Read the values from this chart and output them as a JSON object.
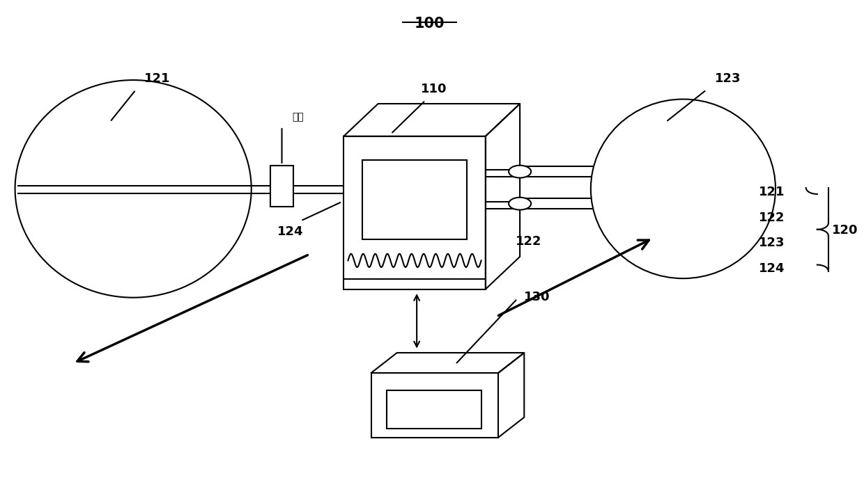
{
  "bg_color": "#ffffff",
  "lc": "#000000",
  "lw": 1.5,
  "figsize": [
    12.4,
    6.87
  ],
  "dpi": 100,
  "title": "100",
  "fs": 13
}
